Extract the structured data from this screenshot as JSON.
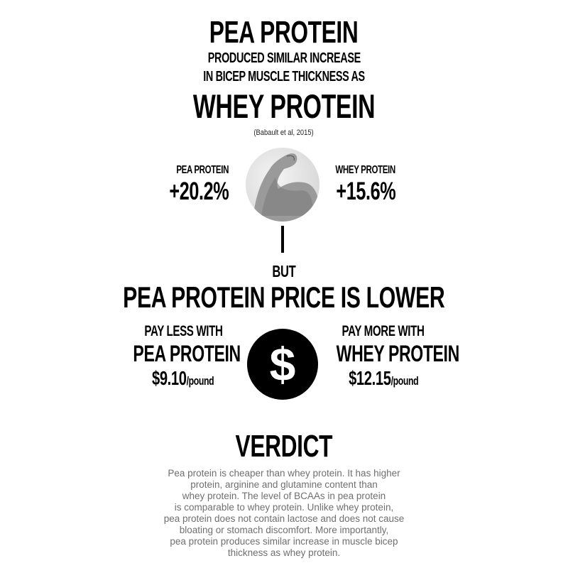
{
  "header": {
    "title_top": "PEA PROTEIN",
    "subtitle_line1": "PRODUCED SIMILAR INCREASE",
    "subtitle_line2": "IN BICEP MUSCLE THICKNESS AS",
    "title_bottom": "WHEY PROTEIN",
    "citation": "(Babault et al, 2015)"
  },
  "muscle": {
    "left_label": "PEA PROTEIN",
    "left_value": "+20.2%",
    "right_label": "WHEY PROTEIN",
    "right_value": "+15.6%",
    "icon": "flexed-bicep-image"
  },
  "price": {
    "but": "BUT",
    "headline": "PEA PROTEIN PRICE IS LOWER",
    "left_caption": "PAY LESS WITH",
    "left_product": "PEA PROTEIN",
    "left_price": "$9.10",
    "left_unit": "/pound",
    "right_caption": "PAY MORE WITH",
    "right_product": "WHEY PROTEIN",
    "right_price": "$12.15",
    "right_unit": "/pound",
    "icon": "dollar-sign-icon",
    "icon_symbol": "$"
  },
  "verdict": {
    "title": "VERDICT",
    "lines": [
      "Pea protein is cheaper than whey protein. It has higher",
      "protein, arginine and glutamine content than",
      "whey protein. The level of BCAAs in pea protein",
      "is comparable to whey protein. Unlike whey protein,",
      "pea protein does not contain lactose and does not cause",
      "bloating or stomach discomfort. More importantly,",
      "pea protein produces similar increase in muscle bicep",
      "thickness as whey protein."
    ]
  }
}
